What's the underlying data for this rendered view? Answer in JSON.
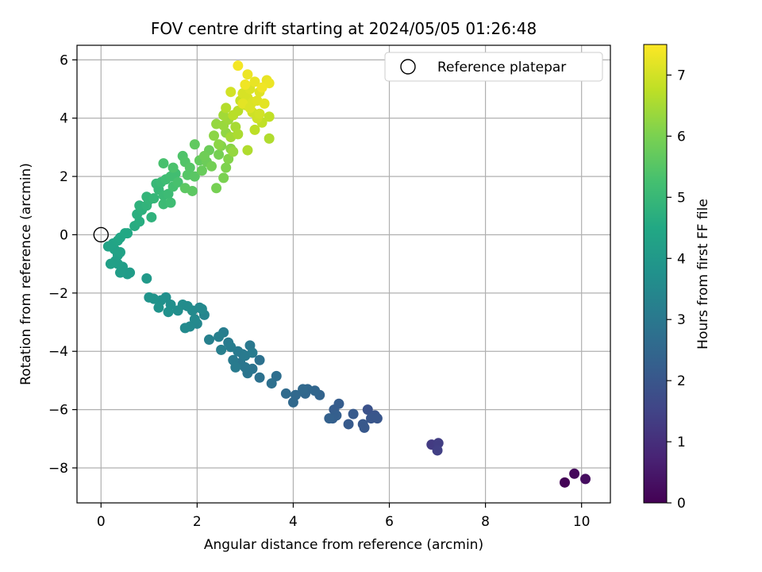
{
  "chart_data": {
    "type": "scatter",
    "title": "FOV centre drift starting at 2024/05/05 01:26:48",
    "xlabel": "Angular distance from reference (arcmin)",
    "ylabel": "Rotation from reference (arcmin)",
    "xlim": [
      -0.5,
      10.6
    ],
    "ylim": [
      -9.2,
      6.5
    ],
    "xticks": [
      0,
      2,
      4,
      6,
      8,
      10
    ],
    "yticks": [
      -8,
      -6,
      -4,
      -2,
      0,
      2,
      4,
      6
    ],
    "grid": true,
    "legend": {
      "position": "top-right",
      "entries": [
        "Reference platepar"
      ]
    },
    "reference_point": {
      "x": 0,
      "y": 0,
      "label": "Reference platepar"
    },
    "colorbar": {
      "label": "Hours from first FF file",
      "range": [
        0,
        7.5
      ],
      "ticks": [
        0,
        1,
        2,
        3,
        4,
        5,
        6,
        7
      ],
      "colormap": "viridis"
    },
    "points": [
      [
        9.65,
        -8.5,
        0.05
      ],
      [
        9.85,
        -8.2,
        0.15
      ],
      [
        10.08,
        -8.38,
        0.25
      ],
      [
        6.88,
        -7.2,
        1.3
      ],
      [
        7.02,
        -7.15,
        1.35
      ],
      [
        7.0,
        -7.4,
        1.4
      ],
      [
        5.55,
        -6.0,
        1.9
      ],
      [
        5.7,
        -6.2,
        1.95
      ],
      [
        5.62,
        -6.3,
        2.0
      ],
      [
        5.75,
        -6.3,
        2.0
      ],
      [
        5.45,
        -6.5,
        2.05
      ],
      [
        5.48,
        -6.62,
        2.05
      ],
      [
        5.25,
        -6.15,
        2.1
      ],
      [
        5.15,
        -6.5,
        2.1
      ],
      [
        4.95,
        -5.8,
        2.2
      ],
      [
        4.85,
        -6.0,
        2.2
      ],
      [
        4.9,
        -6.2,
        2.25
      ],
      [
        4.82,
        -6.3,
        2.25
      ],
      [
        4.75,
        -6.3,
        2.3
      ],
      [
        4.55,
        -5.5,
        2.4
      ],
      [
        4.45,
        -5.35,
        2.45
      ],
      [
        4.3,
        -5.3,
        2.5
      ],
      [
        4.25,
        -5.45,
        2.5
      ],
      [
        4.05,
        -5.5,
        2.55
      ],
      [
        4.0,
        -5.75,
        2.55
      ],
      [
        3.85,
        -5.45,
        2.6
      ],
      [
        4.2,
        -5.3,
        2.55
      ],
      [
        3.65,
        -4.85,
        2.7
      ],
      [
        3.55,
        -5.1,
        2.75
      ],
      [
        3.3,
        -4.3,
        2.8
      ],
      [
        3.3,
        -4.9,
        2.8
      ],
      [
        3.15,
        -4.6,
        2.85
      ],
      [
        3.05,
        -4.75,
        2.9
      ],
      [
        2.9,
        -4.4,
        2.95
      ],
      [
        3.0,
        -4.55,
        2.95
      ],
      [
        2.95,
        -4.1,
        3.0
      ],
      [
        3.1,
        -3.8,
        3.0
      ],
      [
        2.85,
        -4.0,
        3.05
      ],
      [
        2.75,
        -4.3,
        3.05
      ],
      [
        2.8,
        -4.55,
        3.1
      ],
      [
        2.65,
        -3.7,
        3.1
      ],
      [
        2.7,
        -3.85,
        3.15
      ],
      [
        2.55,
        -3.35,
        3.15
      ],
      [
        2.45,
        -3.5,
        3.2
      ],
      [
        2.5,
        -3.95,
        3.2
      ],
      [
        2.25,
        -3.6,
        3.25
      ],
      [
        3.0,
        -4.15,
        3.05
      ],
      [
        3.15,
        -4.05,
        3.1
      ],
      [
        2.15,
        -2.75,
        3.4
      ],
      [
        2.05,
        -2.5,
        3.45
      ],
      [
        2.0,
        -3.05,
        3.45
      ],
      [
        1.95,
        -2.9,
        3.5
      ],
      [
        1.85,
        -3.15,
        3.5
      ],
      [
        1.75,
        -3.2,
        3.55
      ],
      [
        1.9,
        -2.6,
        3.55
      ],
      [
        1.7,
        -2.4,
        3.6
      ],
      [
        1.8,
        -2.45,
        3.6
      ],
      [
        1.6,
        -2.6,
        3.65
      ],
      [
        1.45,
        -2.4,
        3.7
      ],
      [
        1.35,
        -2.15,
        3.7
      ],
      [
        1.4,
        -2.65,
        3.75
      ],
      [
        1.25,
        -2.25,
        3.75
      ],
      [
        1.2,
        -2.5,
        3.8
      ],
      [
        1.1,
        -2.2,
        3.8
      ],
      [
        1.0,
        -2.15,
        3.85
      ],
      [
        2.1,
        -2.55,
        3.5
      ],
      [
        0.95,
        -1.5,
        4.0
      ],
      [
        0.6,
        -1.3,
        4.1
      ],
      [
        0.55,
        -1.35,
        4.1
      ],
      [
        0.45,
        -1.1,
        4.15
      ],
      [
        0.4,
        -1.3,
        4.15
      ],
      [
        0.35,
        -1.0,
        4.2
      ],
      [
        0.3,
        -0.9,
        4.2
      ],
      [
        0.2,
        -1.0,
        4.25
      ],
      [
        0.35,
        -0.7,
        4.25
      ],
      [
        0.4,
        -0.6,
        4.3
      ],
      [
        0.28,
        -0.5,
        4.3
      ],
      [
        0.15,
        -0.4,
        4.35
      ],
      [
        0.25,
        -0.3,
        4.35
      ],
      [
        0.35,
        -0.2,
        4.4
      ],
      [
        0.4,
        -0.1,
        4.45
      ],
      [
        0.5,
        0.05,
        4.5
      ],
      [
        0.55,
        0.05,
        4.5
      ],
      [
        0.7,
        0.3,
        4.6
      ],
      [
        0.8,
        0.45,
        4.65
      ],
      [
        0.75,
        0.7,
        4.7
      ],
      [
        0.85,
        0.85,
        4.75
      ],
      [
        1.05,
        0.6,
        4.8
      ],
      [
        0.8,
        1.0,
        4.8
      ],
      [
        0.95,
        1.0,
        4.85
      ],
      [
        1.0,
        1.2,
        4.9
      ],
      [
        0.95,
        1.3,
        4.9
      ],
      [
        1.1,
        1.25,
        4.95
      ],
      [
        1.2,
        1.55,
        5.0
      ],
      [
        1.15,
        1.75,
        5.0
      ],
      [
        1.25,
        1.8,
        5.05
      ],
      [
        1.3,
        1.35,
        5.05
      ],
      [
        1.4,
        1.4,
        5.1
      ],
      [
        1.3,
        1.05,
        5.1
      ],
      [
        1.45,
        1.1,
        5.15
      ],
      [
        1.35,
        1.9,
        5.15
      ],
      [
        1.45,
        2.0,
        5.2
      ],
      [
        1.55,
        2.1,
        5.2
      ],
      [
        1.5,
        1.65,
        5.25
      ],
      [
        1.6,
        1.8,
        5.3
      ],
      [
        1.3,
        2.45,
        5.3
      ],
      [
        1.5,
        2.3,
        5.35
      ],
      [
        1.7,
        2.7,
        5.4
      ],
      [
        1.75,
        2.5,
        5.45
      ],
      [
        1.85,
        2.3,
        5.5
      ],
      [
        1.8,
        2.05,
        5.5
      ],
      [
        1.95,
        2.0,
        5.55
      ],
      [
        1.9,
        1.5,
        5.6
      ],
      [
        1.75,
        1.6,
        5.6
      ],
      [
        1.95,
        3.1,
        5.65
      ],
      [
        2.05,
        2.55,
        5.7
      ],
      [
        2.1,
        2.2,
        5.75
      ],
      [
        2.2,
        2.5,
        5.8
      ],
      [
        2.25,
        2.9,
        5.8
      ],
      [
        2.15,
        2.7,
        5.85
      ],
      [
        2.3,
        2.35,
        5.9
      ],
      [
        2.45,
        2.75,
        5.95
      ],
      [
        2.4,
        1.6,
        5.95
      ],
      [
        2.55,
        1.95,
        6.0
      ],
      [
        2.6,
        2.3,
        6.05
      ],
      [
        2.65,
        2.6,
        6.1
      ],
      [
        2.5,
        3.05,
        6.1
      ],
      [
        2.7,
        2.95,
        6.15
      ],
      [
        2.35,
        3.4,
        6.2
      ],
      [
        2.45,
        3.1,
        6.2
      ],
      [
        2.6,
        3.5,
        6.25
      ],
      [
        2.75,
        2.85,
        6.3
      ],
      [
        2.4,
        3.8,
        6.3
      ],
      [
        2.55,
        3.75,
        6.35
      ],
      [
        2.65,
        3.95,
        6.4
      ],
      [
        2.7,
        3.35,
        6.45
      ],
      [
        2.55,
        4.1,
        6.45
      ],
      [
        2.8,
        3.7,
        6.5
      ],
      [
        2.85,
        3.45,
        6.55
      ],
      [
        3.05,
        2.9,
        6.6
      ],
      [
        3.5,
        3.3,
        6.6
      ],
      [
        2.6,
        4.35,
        6.65
      ],
      [
        2.75,
        4.1,
        6.7
      ],
      [
        2.85,
        4.25,
        6.7
      ],
      [
        3.2,
        3.6,
        6.75
      ],
      [
        3.35,
        3.85,
        6.8
      ],
      [
        3.5,
        4.05,
        6.8
      ],
      [
        2.9,
        4.6,
        6.85
      ],
      [
        3.0,
        4.45,
        6.9
      ],
      [
        3.15,
        4.2,
        6.95
      ],
      [
        3.25,
        4.0,
        6.95
      ],
      [
        3.3,
        4.15,
        7.0
      ],
      [
        2.7,
        4.9,
        7.0
      ],
      [
        2.95,
        4.85,
        7.05
      ],
      [
        3.05,
        4.7,
        7.05
      ],
      [
        3.1,
        5.0,
        7.1
      ],
      [
        3.15,
        4.55,
        7.1
      ],
      [
        3.25,
        4.6,
        7.15
      ],
      [
        3.3,
        4.9,
        7.15
      ],
      [
        3.4,
        4.5,
        7.2
      ],
      [
        3.45,
        5.3,
        7.25
      ],
      [
        3.2,
        5.25,
        7.25
      ],
      [
        3.05,
        5.5,
        7.3
      ],
      [
        3.5,
        5.2,
        7.3
      ],
      [
        3.35,
        5.05,
        7.35
      ],
      [
        2.85,
        5.8,
        7.4
      ],
      [
        3.0,
        5.15,
        7.35
      ],
      [
        2.95,
        4.5,
        7.2
      ],
      [
        3.1,
        4.35,
        7.1
      ]
    ]
  }
}
